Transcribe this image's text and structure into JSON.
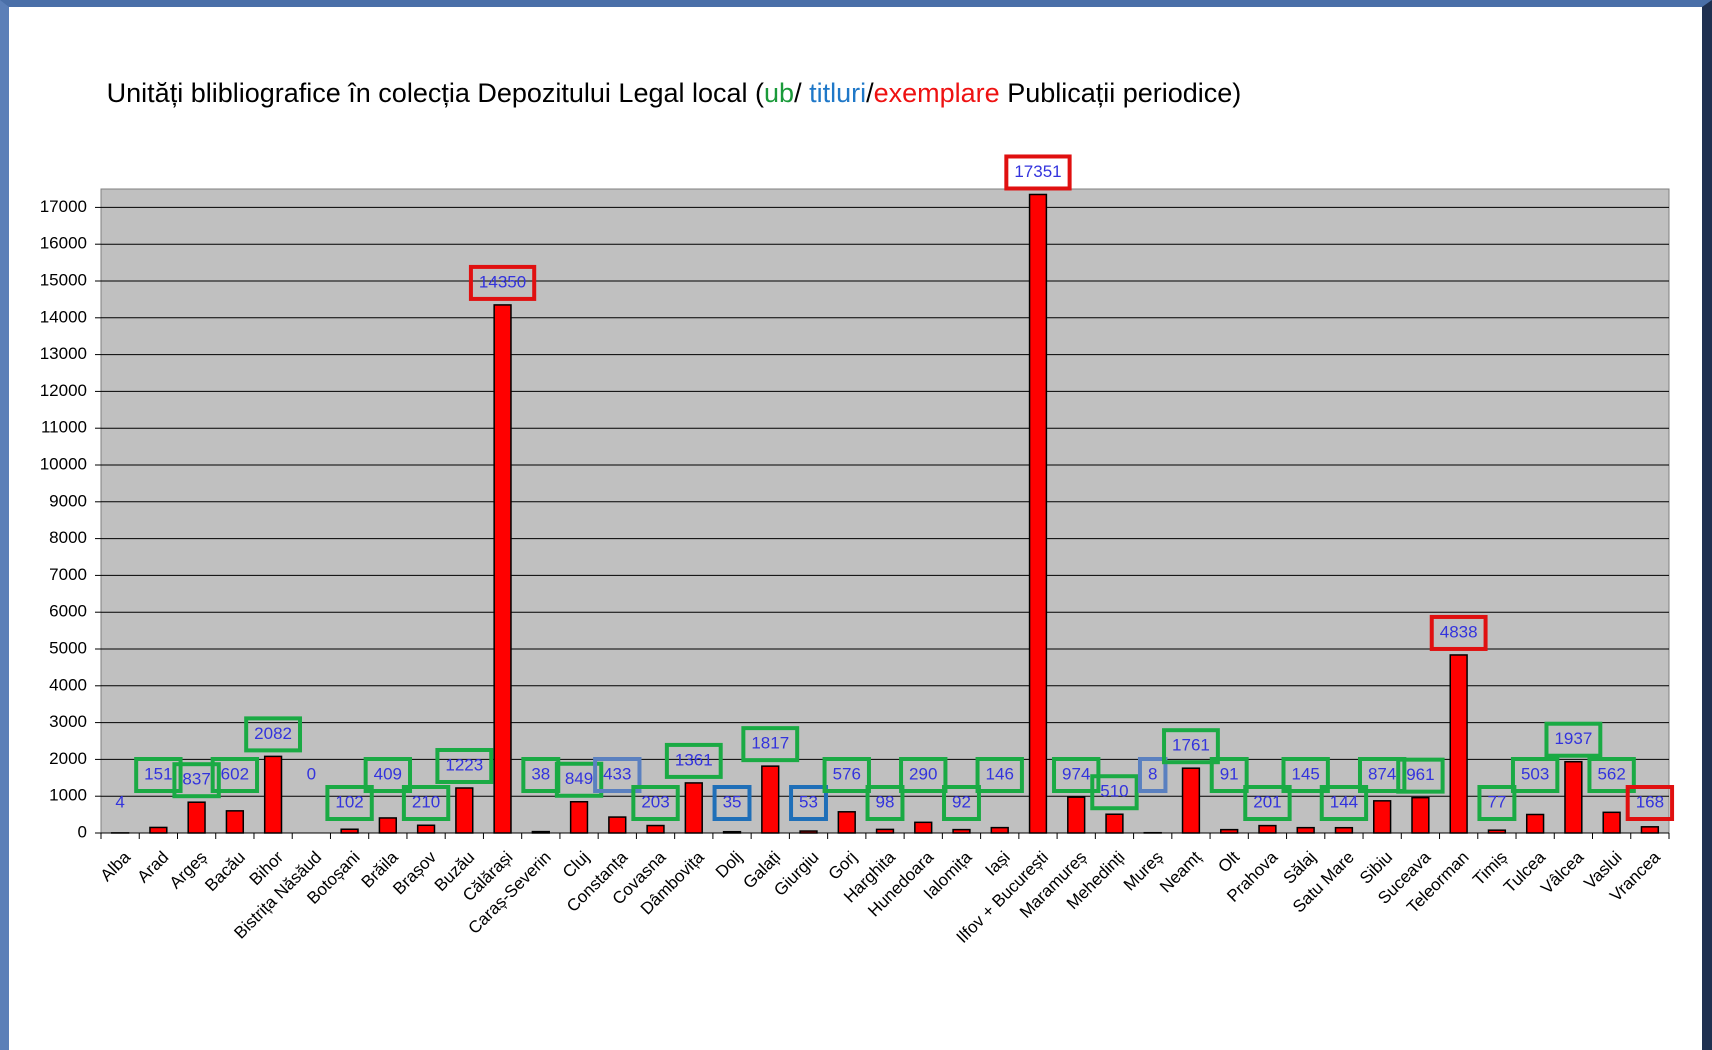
{
  "chart_data": {
    "type": "bar",
    "title_parts": [
      {
        "text": "Unități blibliografice în colecția Depozitului Legal local (",
        "color": "#000000"
      },
      {
        "text": "ub",
        "color": "#1a9a3a"
      },
      {
        "text": "/ ",
        "color": "#000000"
      },
      {
        "text": "titluri",
        "color": "#1f78c8"
      },
      {
        "text": "/",
        "color": "#000000"
      },
      {
        "text": "exemplare",
        "color": "#ee1111"
      },
      {
        "text": " Publicații periodice)",
        "color": "#000000"
      }
    ],
    "categories": [
      "Alba",
      "Arad",
      "Argeș",
      "Bacău",
      "Bihor",
      "Bistrița Năsăud",
      "Botoșani",
      "Brăila",
      "Brașov",
      "Buzău",
      "Călărași",
      "Caraș-Severin",
      "Cluj",
      "Constanța",
      "Covasna",
      "Dâmbovița",
      "Dolj",
      "Galați",
      "Giurgiu",
      "Gorj",
      "Harghita",
      "Hunedoara",
      "Ialomița",
      "Iași",
      "Ilfov + București",
      "Maramureș",
      "Mehedinți",
      "Mureș",
      "Neamț",
      "Olt",
      "Prahova",
      "Sălaj",
      "Satu Mare",
      "Sibiu",
      "Suceava",
      "Teleorman",
      "Timiș",
      "Tulcea",
      "Vâlcea",
      "Vaslui",
      "Vrancea"
    ],
    "values": [
      4,
      151,
      837,
      602,
      2082,
      0,
      102,
      409,
      210,
      1223,
      14350,
      38,
      849,
      433,
      203,
      1361,
      35,
      1817,
      53,
      576,
      98,
      290,
      92,
      146,
      17351,
      974,
      510,
      8,
      1761,
      91,
      201,
      145,
      144,
      874,
      961,
      4838,
      77,
      503,
      1937,
      562,
      168
    ],
    "label_box_colors": [
      null,
      "#1aaa44",
      "#1aaa44",
      "#1aaa44",
      "#1aaa44",
      null,
      "#1aaa44",
      "#1aaa44",
      "#1aaa44",
      "#1aaa44",
      "#e01010",
      "#1aaa44",
      "#1aaa44",
      "#5a80c0",
      "#1aaa44",
      "#1aaa44",
      "#1f6fb8",
      "#1aaa44",
      "#1f6fb8",
      "#1aaa44",
      "#1aaa44",
      "#1aaa44",
      "#1aaa44",
      "#1aaa44",
      "#e01010",
      "#1aaa44",
      "#1aaa44",
      "#5a80c0",
      "#1aaa44",
      "#1aaa44",
      "#1aaa44",
      "#1aaa44",
      "#1aaa44",
      "#1aaa44",
      "#1aaa44",
      "#e01010",
      "#1aaa44",
      "#1aaa44",
      "#1aaa44",
      "#1aaa44",
      "#e01010"
    ],
    "color": "#ff0000",
    "label_color": "#3333dd",
    "plot_background": "#c0c0c0",
    "ylim": [
      0,
      17500
    ],
    "yticks": [
      0,
      1000,
      2000,
      3000,
      4000,
      5000,
      6000,
      7000,
      8000,
      9000,
      10000,
      11000,
      12000,
      13000,
      14000,
      15000,
      16000,
      17000
    ],
    "grid": true
  }
}
